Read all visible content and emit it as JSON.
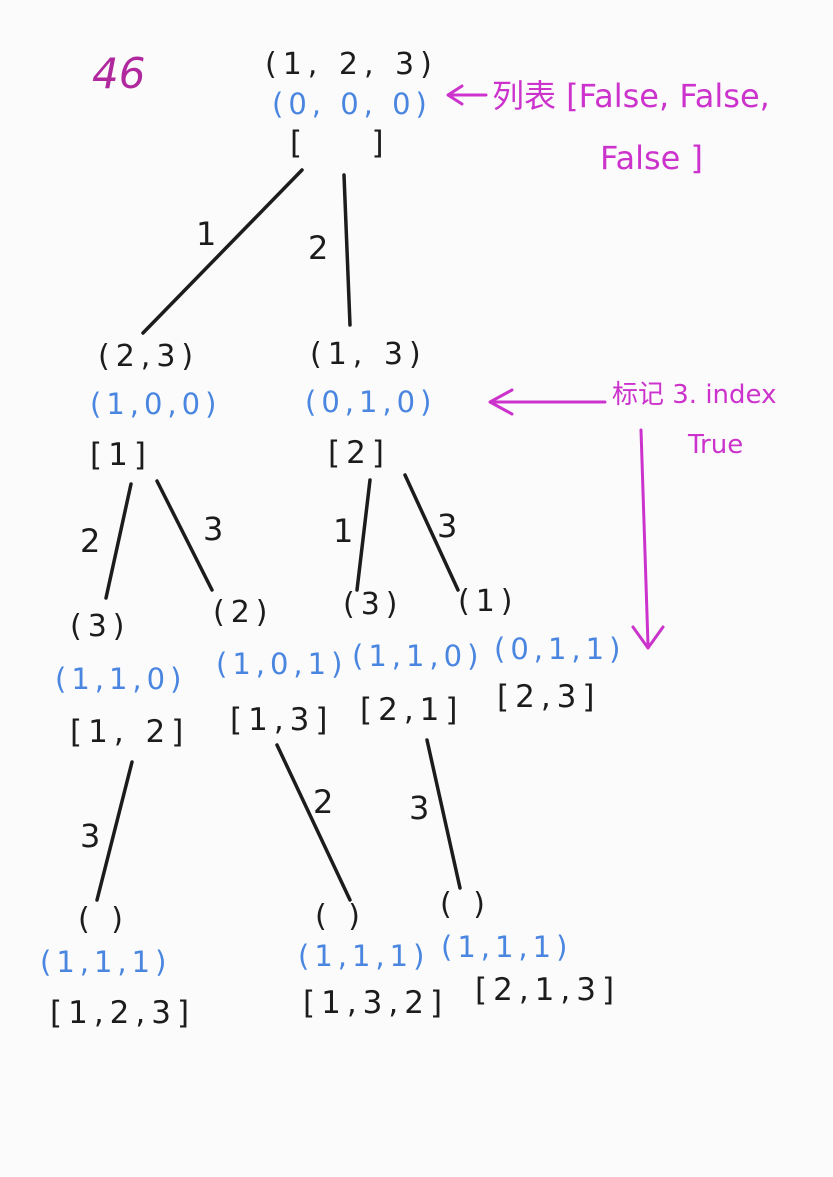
{
  "problem_number": "46",
  "root": {
    "remaining": "(1, 2, 3)",
    "used": "(0, 0, 0)",
    "path": "[    ]"
  },
  "level1": [
    {
      "edge": "1",
      "remaining": "(2,3)",
      "used": "(1,0,0)",
      "path": "[1]"
    },
    {
      "edge": "2",
      "remaining": "(1, 3)",
      "used": "(0,1,0)",
      "path": "[2]"
    }
  ],
  "level2": [
    {
      "edge": "2",
      "remaining": "(3)",
      "used": "(1,1,0)",
      "path": "[1, 2]"
    },
    {
      "edge": "3",
      "remaining": "(2)",
      "used": "(1,0,1)",
      "path": "[1,3]"
    },
    {
      "edge": "1",
      "remaining": "(3)",
      "used": "(1,1,0)",
      "path": "[2,1]"
    },
    {
      "edge": "3",
      "remaining": "(1)",
      "used": "(0,1,1)",
      "path": "[2,3]"
    }
  ],
  "level3": [
    {
      "edge": "3",
      "remaining": "( )",
      "used": "(1,1,1)",
      "path": "[1,2,3]"
    },
    {
      "edge": "2",
      "remaining": "( )",
      "used": "(1,1,1)",
      "path": "[1,3,2]"
    },
    {
      "edge": "3",
      "remaining": "( )",
      "used": "(1,1,1)",
      "path": "[2,1,3]"
    }
  ],
  "annotations": {
    "list_note_line1": "列表 [False, False,",
    "list_note_line2": "False ]",
    "mark_note_line1": "标记 3. index",
    "mark_note_line2": "True"
  },
  "colors": {
    "ink": "#1c1c1c",
    "blue": "#4a86e0",
    "magenta": "#cc33cc"
  }
}
